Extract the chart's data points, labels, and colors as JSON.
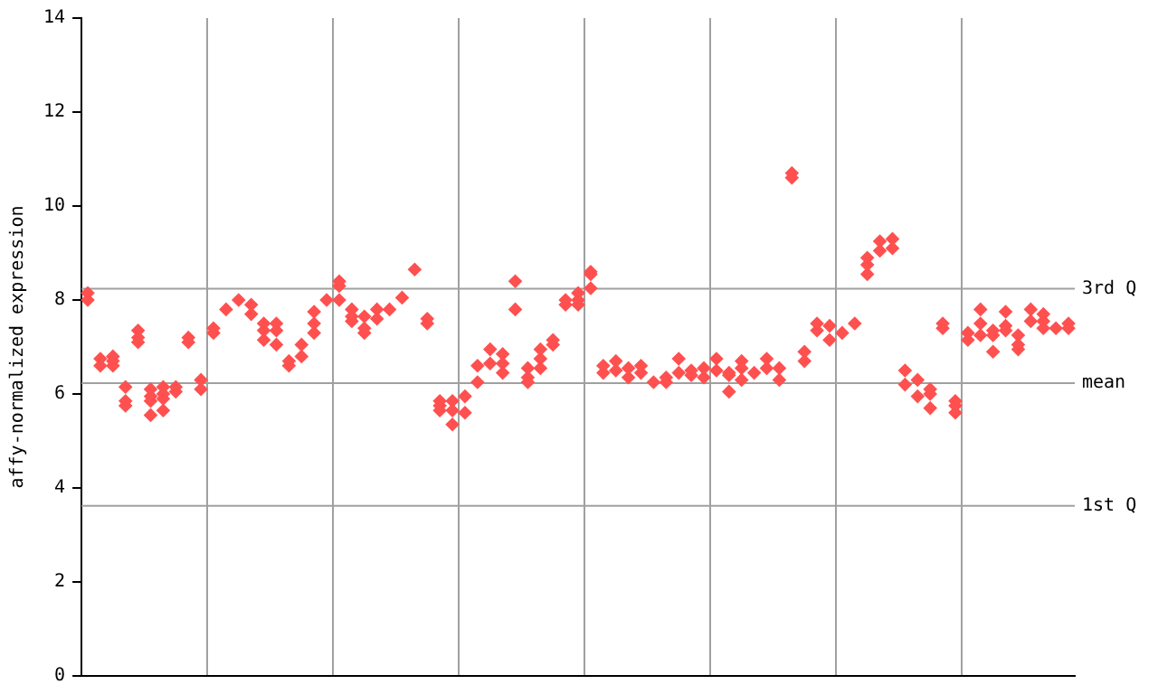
{
  "chart_data": {
    "type": "scatter",
    "ylabel": "affy-normalized expression",
    "marker": "diamond",
    "grid": "x",
    "tick_labels": "y",
    "legend": false,
    "categories": [
      null,
      null,
      null,
      null,
      null,
      null,
      null,
      null,
      null,
      null,
      null,
      null,
      null,
      null,
      null,
      null,
      null,
      null,
      null,
      null,
      null,
      null,
      null,
      null,
      null,
      null,
      null,
      null,
      null,
      null,
      null,
      null,
      null,
      null,
      null,
      null,
      null,
      null,
      null,
      null,
      null,
      null,
      null,
      null,
      null,
      null,
      null,
      null,
      null,
      null,
      null,
      null,
      null,
      null,
      null,
      null,
      null,
      null,
      null,
      null,
      null,
      null,
      null,
      null,
      null,
      null,
      null,
      null,
      null,
      null,
      null,
      null,
      null,
      null,
      null,
      null,
      null,
      null,
      null
    ],
    "ylim": [
      0,
      14
    ],
    "yticks": [
      0,
      2,
      4,
      6,
      8,
      10,
      12,
      14
    ],
    "ref_lines": [
      {
        "axis": "y",
        "value": 8.24,
        "label": "3rd Q",
        "color": "#a0a0a0"
      },
      {
        "axis": "y",
        "value": 6.23,
        "label": "mean",
        "color": "#a0a0a0"
      },
      {
        "axis": "y",
        "value": 3.62,
        "label": "1st Q",
        "color": "#a0a0a0"
      }
    ],
    "series": [
      {
        "color": "#ff5050",
        "values": [
          8.15,
          6.75,
          6.8,
          6.15,
          7.35,
          6.1,
          6.15,
          6.15,
          7.2,
          6.3,
          7.4,
          7.8,
          8.0,
          7.9,
          7.5,
          7.5,
          6.7,
          7.05,
          7.75,
          8.0,
          8.4,
          7.8,
          7.65,
          7.8,
          7.8,
          8.05,
          8.65,
          7.6,
          5.85,
          5.85,
          5.95,
          6.6,
          6.95,
          6.85,
          8.4,
          6.55,
          6.95,
          7.15,
          8.0,
          8.15,
          8.6,
          6.6,
          6.7,
          6.55,
          6.6,
          6.25,
          6.35,
          6.75,
          6.5,
          6.55,
          6.75,
          6.45,
          6.7,
          6.45,
          6.75,
          6.55,
          10.7,
          6.9,
          7.5,
          7.45,
          7.3,
          7.5,
          8.9,
          9.25,
          9.3,
          6.5,
          6.3,
          6.1,
          7.5,
          5.85,
          7.3,
          7.8,
          7.35,
          7.75,
          7.25,
          7.8,
          7.7,
          7.4,
          7.5
        ]
      },
      {
        "color": "#ff5050",
        "values": [
          8.0,
          6.6,
          6.7,
          5.85,
          7.2,
          5.95,
          6.0,
          6.05,
          7.1,
          6.1,
          7.3,
          null,
          null,
          7.7,
          7.35,
          7.35,
          6.6,
          6.8,
          7.5,
          null,
          8.3,
          7.65,
          7.4,
          7.6,
          null,
          null,
          null,
          7.5,
          5.75,
          5.65,
          5.6,
          6.25,
          6.65,
          6.65,
          7.8,
          6.35,
          6.75,
          7.05,
          7.9,
          8.0,
          8.55,
          6.45,
          6.5,
          6.35,
          6.45,
          null,
          6.25,
          6.45,
          6.4,
          6.35,
          6.5,
          6.4,
          6.55,
          null,
          6.55,
          6.3,
          10.6,
          6.7,
          7.35,
          7.15,
          null,
          null,
          8.75,
          9.05,
          9.1,
          6.2,
          5.95,
          6.0,
          7.4,
          5.75,
          7.15,
          7.5,
          7.25,
          7.45,
          7.05,
          7.55,
          7.55,
          null,
          7.4
        ]
      },
      {
        "color": "#ff5050",
        "values": [
          null,
          null,
          6.6,
          5.75,
          7.1,
          5.85,
          5.9,
          null,
          null,
          null,
          null,
          null,
          null,
          null,
          7.15,
          7.05,
          null,
          null,
          7.3,
          null,
          8.0,
          7.55,
          7.3,
          null,
          null,
          null,
          null,
          null,
          5.65,
          5.35,
          null,
          null,
          null,
          6.45,
          null,
          6.25,
          6.55,
          null,
          null,
          7.9,
          8.25,
          null,
          null,
          null,
          null,
          null,
          null,
          null,
          null,
          null,
          null,
          6.05,
          6.3,
          null,
          null,
          null,
          null,
          null,
          null,
          null,
          null,
          null,
          8.55,
          null,
          null,
          null,
          null,
          5.7,
          null,
          5.6,
          null,
          7.25,
          6.9,
          7.35,
          6.95,
          null,
          7.4,
          null,
          null
        ]
      },
      {
        "color": "#ff5050",
        "values": [
          null,
          null,
          null,
          null,
          null,
          5.55,
          5.65,
          null,
          null,
          null,
          null,
          null,
          null,
          null,
          null,
          null,
          null,
          null,
          null,
          null,
          null,
          null,
          null,
          null,
          null,
          null,
          null,
          null,
          null,
          null,
          null,
          null,
          null,
          null,
          null,
          null,
          null,
          null,
          null,
          null,
          null,
          null,
          null,
          null,
          null,
          null,
          null,
          null,
          null,
          null,
          null,
          null,
          null,
          null,
          null,
          null,
          null,
          null,
          null,
          null,
          null,
          null,
          null,
          null,
          null,
          null,
          null,
          null,
          null,
          null,
          null,
          null,
          null,
          null,
          null,
          null,
          null,
          null,
          null
        ]
      }
    ]
  }
}
